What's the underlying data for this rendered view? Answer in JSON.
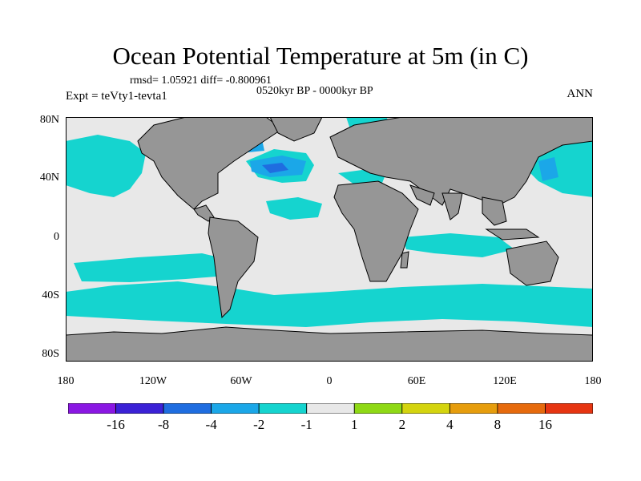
{
  "title": "Ocean Potential Temperature at 5m (in C)",
  "stats": "rmsd= 1.05921 diff= -0.800961",
  "period": "0520kyr BP - 0000kyr BP",
  "experiment": "Expt = teVty1-tevta1",
  "season": "ANN",
  "lat_ticks": [
    "80N",
    "40N",
    "0",
    "40S",
    "80S"
  ],
  "lon_ticks": [
    "180",
    "120W",
    "60W",
    "0",
    "60E",
    "120E",
    "180"
  ],
  "colorbar": {
    "colors": [
      "#8a17e3",
      "#3b21d6",
      "#1f6de0",
      "#1ba7e8",
      "#15d4cf",
      "#e8e8e8",
      "#8fd915",
      "#d4d40e",
      "#e69d0d",
      "#e66a0d",
      "#e63512"
    ],
    "labels": [
      "-16",
      "-8",
      "-4",
      "-2",
      "-1",
      "1",
      "2",
      "4",
      "8",
      "16"
    ]
  },
  "colors": {
    "land": "#969696",
    "neutral": "#e8e8e8",
    "cyan": "#15d4cf",
    "mid_blue": "#1ba7e8",
    "blue": "#1f6de0"
  }
}
